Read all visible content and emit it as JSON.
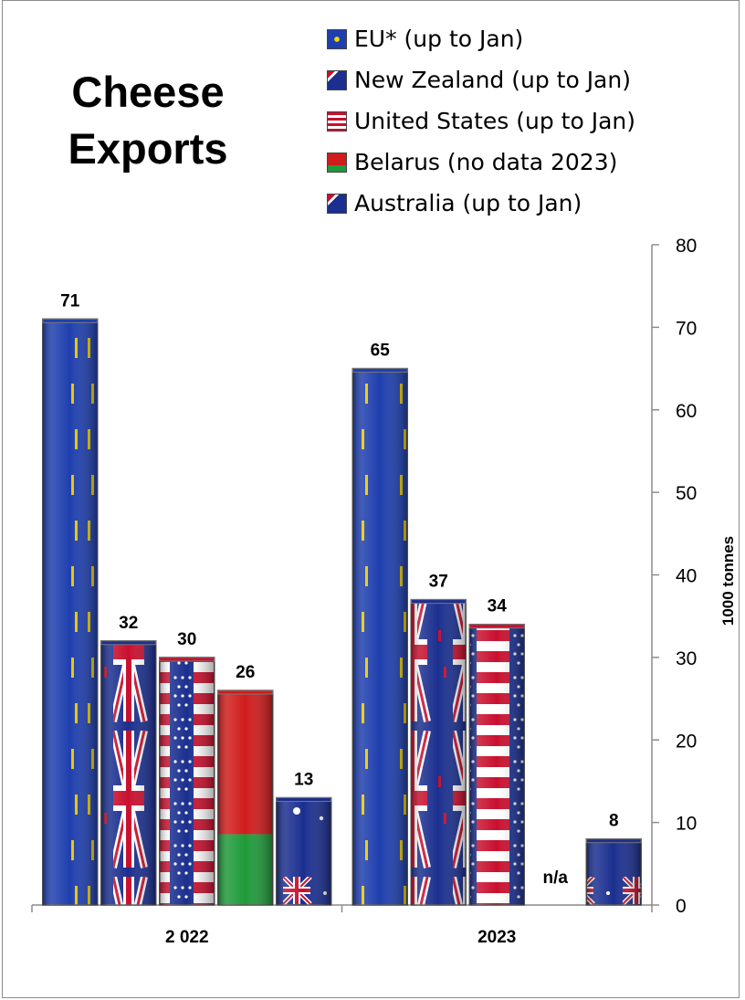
{
  "chart_data": {
    "type": "bar",
    "title_lines": [
      "Cheese",
      "Exports"
    ],
    "categories": [
      "2 022",
      "2023"
    ],
    "series": [
      {
        "name": "EU* (up to Jan)",
        "values": [
          71,
          65
        ],
        "labels": [
          "71",
          "65"
        ],
        "flag": "eu",
        "color": "#1f3fae"
      },
      {
        "name": "New Zealand (up to Jan)",
        "values": [
          32,
          37
        ],
        "labels": [
          "32",
          "37"
        ],
        "flag": "nz",
        "color": "#1b2f8f"
      },
      {
        "name": "United States (up to Jan)",
        "values": [
          30,
          34
        ],
        "labels": [
          "30",
          "34"
        ],
        "flag": "us",
        "color": "#c8102e"
      },
      {
        "name": "Belarus (no data 2023)",
        "values": [
          26,
          null
        ],
        "labels": [
          "26",
          "n/a"
        ],
        "flag": "by",
        "color": "#d01c1c"
      },
      {
        "name": "Australia (up to Jan)",
        "values": [
          13,
          8
        ],
        "labels": [
          "13",
          "8"
        ],
        "flag": "au",
        "color": "#1b2f8f"
      }
    ],
    "ylabel": "1000 tonnes",
    "ylim": [
      0,
      80
    ],
    "yticks": [
      "0",
      "10",
      "20",
      "30",
      "40",
      "50",
      "60",
      "70",
      "80"
    ],
    "y_axis_side": "right",
    "grid": false,
    "legend_position": "top-right"
  }
}
